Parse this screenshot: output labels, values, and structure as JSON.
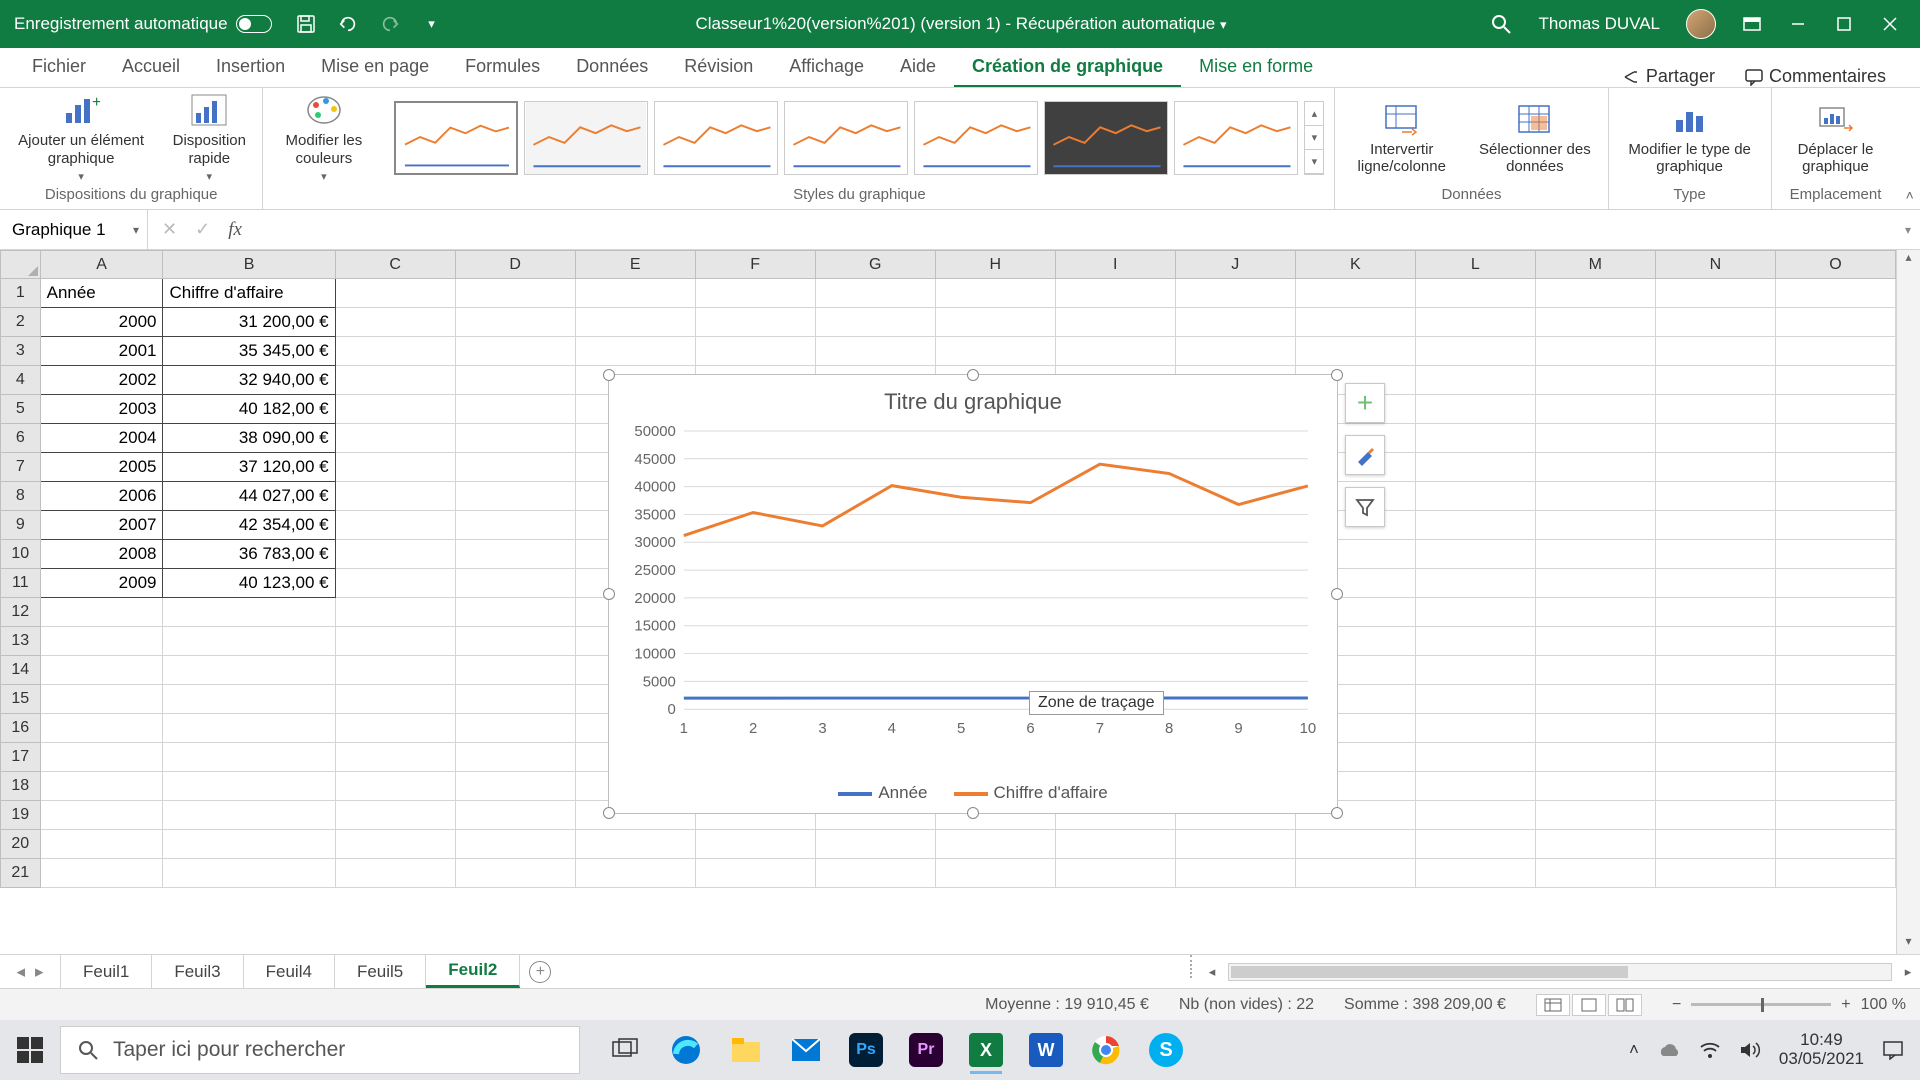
{
  "titlebar": {
    "autosave_label": "Enregistrement automatique",
    "doc_title": "Classeur1%20(version%201) (version 1)  -  Récupération automatique",
    "user_name": "Thomas DUVAL"
  },
  "tabs": {
    "items": [
      "Fichier",
      "Accueil",
      "Insertion",
      "Mise en page",
      "Formules",
      "Données",
      "Révision",
      "Affichage",
      "Aide",
      "Création de graphique",
      "Mise en forme"
    ],
    "active_index": 9,
    "share": "Partager",
    "comments": "Commentaires"
  },
  "ribbon": {
    "group1_label": "Dispositions du graphique",
    "btn_add_element": "Ajouter un élément graphique",
    "btn_quick_layout": "Disposition rapide",
    "btn_change_colors": "Modifier les couleurs",
    "group2_label": "Styles du graphique",
    "group3_label": "Données",
    "btn_switch": "Intervertir ligne/colonne",
    "btn_select": "Sélectionner des données",
    "group4_label": "Type",
    "btn_change_type": "Modifier le type de graphique",
    "group5_label": "Emplacement",
    "btn_move": "Déplacer le graphique"
  },
  "formula_bar": {
    "name_box": "Graphique 1",
    "formula": ""
  },
  "columns": [
    "A",
    "B",
    "C",
    "D",
    "E",
    "F",
    "G",
    "H",
    "I",
    "J",
    "K",
    "L",
    "M",
    "N",
    "O"
  ],
  "row_count": 21,
  "table": {
    "headers": [
      "Année",
      "Chiffre d'affaire"
    ],
    "rows": [
      [
        "2000",
        "31 200,00 €"
      ],
      [
        "2001",
        "35 345,00 €"
      ],
      [
        "2002",
        "32 940,00 €"
      ],
      [
        "2003",
        "40 182,00 €"
      ],
      [
        "2004",
        "38 090,00 €"
      ],
      [
        "2005",
        "37 120,00 €"
      ],
      [
        "2006",
        "44 027,00 €"
      ],
      [
        "2007",
        "42 354,00 €"
      ],
      [
        "2008",
        "36 783,00 €"
      ],
      [
        "2009",
        "40 123,00 €"
      ]
    ]
  },
  "chart": {
    "title": "Titre du graphique",
    "tooltip": "Zone de traçage",
    "type": "line",
    "categories": [
      "1",
      "2",
      "3",
      "4",
      "5",
      "6",
      "7",
      "8",
      "9",
      "10"
    ],
    "series": [
      {
        "name": "Année",
        "color": "#4472c4",
        "values": [
          2000,
          2001,
          2002,
          2003,
          2004,
          2005,
          2006,
          2007,
          2008,
          2009
        ]
      },
      {
        "name": "Chiffre d'affaire",
        "color": "#ed7d31",
        "values": [
          31200,
          35345,
          32940,
          40182,
          38090,
          37120,
          44027,
          42354,
          36783,
          40123
        ]
      }
    ],
    "y_ticks": [
      0,
      5000,
      10000,
      15000,
      20000,
      25000,
      30000,
      35000,
      40000,
      45000,
      50000
    ],
    "ylim": [
      0,
      50000
    ],
    "line_width": 3,
    "grid_color": "#d9d9d9",
    "background": "#ffffff",
    "label_fontsize": 15,
    "title_fontsize": 22
  },
  "sheet_tabs": {
    "items": [
      "Feuil1",
      "Feuil3",
      "Feuil4",
      "Feuil5",
      "Feuil2"
    ],
    "active_index": 4
  },
  "status": {
    "avg_label": "Moyenne :",
    "avg_value": "19 910,45 €",
    "count_label": "Nb (non vides) :",
    "count_value": "22",
    "sum_label": "Somme :",
    "sum_value": "398 209,00 €",
    "zoom": "100 %"
  },
  "taskbar": {
    "search_placeholder": "Taper ici pour rechercher",
    "time": "10:49",
    "date": "03/05/2021"
  },
  "colors": {
    "excel_green": "#107c41",
    "series_blue": "#4472c4",
    "series_orange": "#ed7d31"
  }
}
